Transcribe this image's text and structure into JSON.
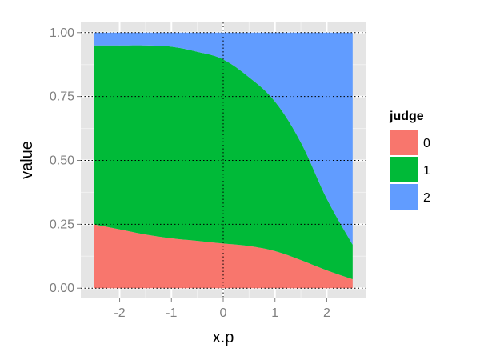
{
  "chart_data": {
    "type": "area",
    "stacked": true,
    "xlabel": "x.p",
    "ylabel": "value",
    "xlim": [
      -2.75,
      2.75
    ],
    "ylim": [
      -0.04,
      1.04
    ],
    "x_ticks": [
      -2,
      -1,
      0,
      1,
      2
    ],
    "x_tick_labels": [
      "-2",
      "-1",
      "0",
      "1",
      "2"
    ],
    "y_ticks": [
      0,
      0.25,
      0.5,
      0.75,
      1
    ],
    "y_tick_labels": [
      "0.00",
      "0.25",
      "0.50",
      "0.75",
      "1.00"
    ],
    "grid": true,
    "legend_title": "judge",
    "legend_position": "right",
    "x": [
      -2.5,
      -2.0,
      -1.5,
      -1.0,
      -0.5,
      0.0,
      0.5,
      1.0,
      1.5,
      2.0,
      2.5
    ],
    "series": [
      {
        "name": "0",
        "color": "#f8766d",
        "values": [
          0.25,
          0.23,
          0.21,
          0.195,
          0.185,
          0.175,
          0.165,
          0.145,
          0.11,
          0.07,
          0.035
        ]
      },
      {
        "name": "1",
        "color": "#00ba38",
        "values": [
          0.7,
          0.72,
          0.74,
          0.75,
          0.74,
          0.72,
          0.66,
          0.585,
          0.46,
          0.28,
          0.135
        ]
      },
      {
        "name": "2",
        "color": "#619cff",
        "values": [
          0.05,
          0.05,
          0.05,
          0.055,
          0.075,
          0.105,
          0.175,
          0.27,
          0.43,
          0.65,
          0.83
        ]
      }
    ]
  }
}
